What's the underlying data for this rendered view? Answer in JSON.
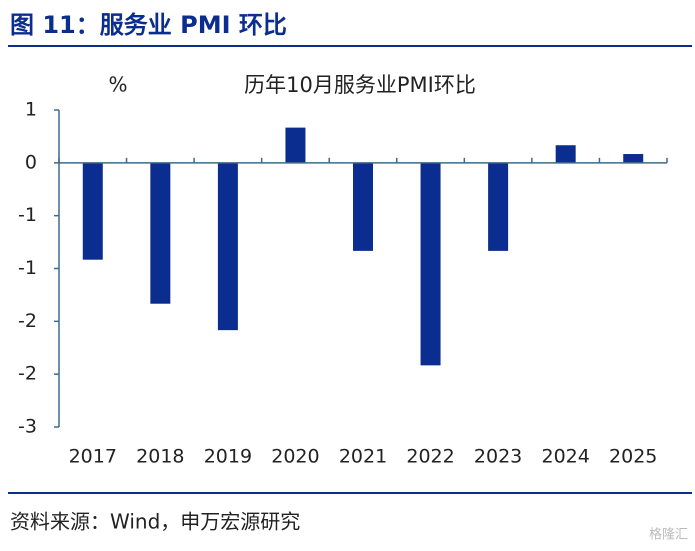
{
  "header": {
    "title": "图 11：服务业 PMI 环比"
  },
  "chart_data": {
    "type": "bar",
    "title": "历年10月服务业PMI环比",
    "y_label": "%",
    "categories": [
      "2017",
      "2018",
      "2019",
      "2020",
      "2021",
      "2022",
      "2023",
      "2024",
      "2025"
    ],
    "values": [
      -1.1,
      -1.6,
      -1.9,
      0.4,
      -1.0,
      -2.3,
      -1.0,
      0.2,
      0.1
    ],
    "color": "#0b2d8f",
    "ylim": [
      -3,
      0.6
    ],
    "yticks": [
      {
        "value": 0.6,
        "label": "1"
      },
      0,
      {
        "value": -0.6,
        "label": "-1"
      },
      {
        "value": -1.2,
        "label": "-1"
      },
      {
        "value": -1.8,
        "label": "-2"
      },
      {
        "value": -2.4,
        "label": "-2"
      },
      -3
    ],
    "grid": false
  },
  "footer": {
    "source": "资料来源：Wind，申万宏源研究",
    "watermark": "格隆汇"
  }
}
